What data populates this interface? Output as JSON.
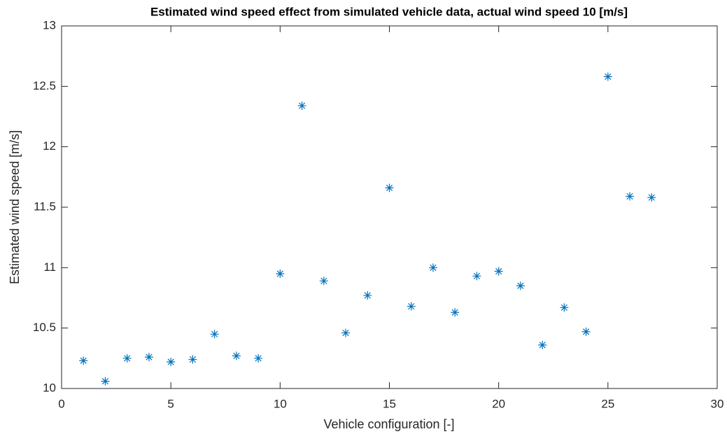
{
  "chart_data": {
    "type": "scatter",
    "title": "Estimated wind speed effect from simulated vehicle data, actual wind speed 10 [m/s]",
    "x_label": "Vehicle configuration [-]",
    "y_label": "Estimated wind speed [m/s]",
    "series": [
      {
        "name": "Estimated wind speed",
        "color": "#0072bd",
        "x": [
          1,
          2,
          3,
          4,
          5,
          6,
          7,
          8,
          9,
          10,
          11,
          12,
          13,
          14,
          15,
          16,
          17,
          18,
          19,
          20,
          21,
          22,
          23,
          24,
          25,
          26,
          27
        ],
        "values": [
          10.23,
          10.06,
          10.25,
          10.26,
          10.22,
          10.24,
          10.45,
          10.27,
          10.25,
          10.95,
          12.34,
          10.89,
          10.46,
          10.77,
          11.66,
          10.68,
          11.0,
          10.63,
          10.93,
          10.97,
          10.85,
          10.36,
          10.67,
          10.47,
          12.58,
          11.59,
          11.58
        ]
      }
    ],
    "xlim": [
      0,
      30
    ],
    "xticks": [
      0,
      5,
      10,
      15,
      20,
      25,
      30
    ],
    "ylim": [
      10,
      13
    ],
    "yticks": [
      10,
      10.5,
      11,
      11.5,
      12,
      12.5,
      13
    ],
    "grid": false
  }
}
